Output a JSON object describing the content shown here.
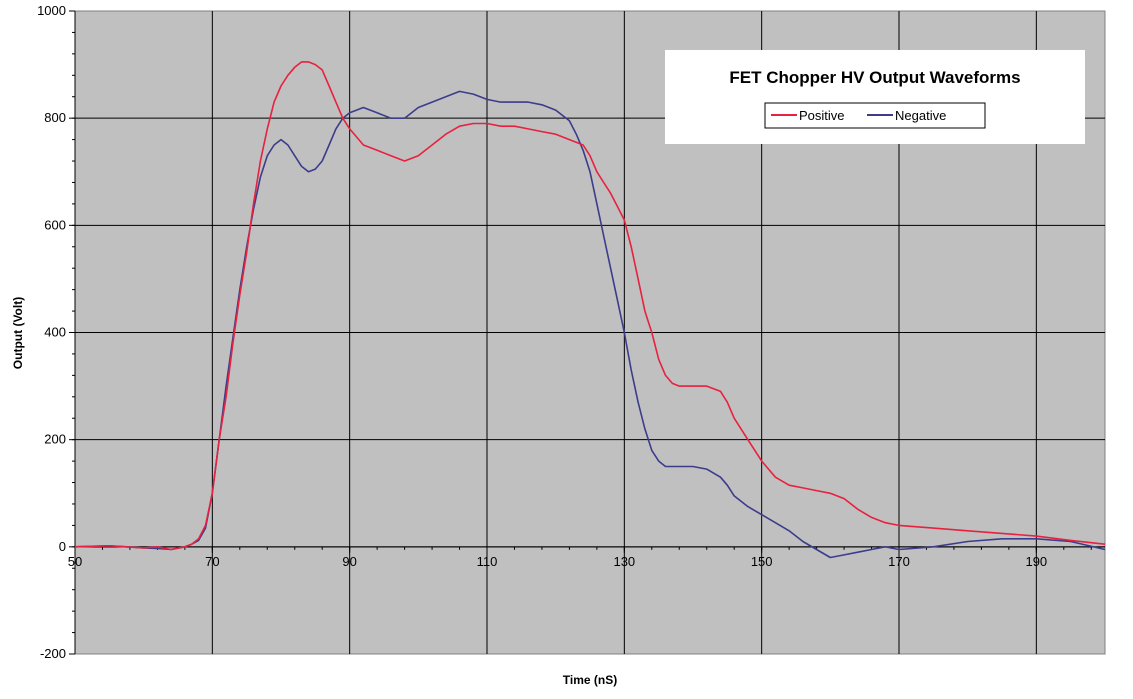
{
  "chart_data": {
    "type": "line",
    "title": "FET Chopper HV Output Waveforms",
    "xlabel": "Time (nS)",
    "ylabel": "Output (Volt)",
    "xlim": [
      50,
      200
    ],
    "ylim": [
      -200,
      1000
    ],
    "x_ticks": [
      50,
      70,
      90,
      110,
      130,
      150,
      170,
      190
    ],
    "y_ticks": [
      -200,
      0,
      200,
      400,
      600,
      800,
      1000
    ],
    "x_tick_labels": [
      "50",
      "70",
      "90",
      "110",
      "130",
      "150",
      "170",
      "190"
    ],
    "y_tick_labels": [
      "-200",
      "0",
      "200",
      "400",
      "600",
      "800",
      "1000"
    ],
    "grid": true,
    "legend_position": "top-right",
    "plot_background": "#c0c0c0",
    "series": [
      {
        "name": "Positive",
        "color": "#e8213f",
        "x": [
          50,
          55,
          60,
          62,
          64,
          66,
          67,
          68,
          69,
          70,
          71,
          72,
          73,
          74,
          75,
          76,
          77,
          78,
          79,
          80,
          81,
          82,
          83,
          84,
          85,
          86,
          87,
          88,
          89,
          90,
          92,
          94,
          96,
          98,
          100,
          102,
          104,
          106,
          108,
          110,
          112,
          114,
          116,
          118,
          120,
          122,
          124,
          125,
          126,
          127,
          128,
          129,
          130,
          131,
          132,
          133,
          134,
          135,
          136,
          137,
          138,
          140,
          142,
          144,
          145,
          146,
          148,
          150,
          152,
          154,
          156,
          158,
          160,
          162,
          164,
          166,
          168,
          170,
          175,
          180,
          185,
          190,
          195,
          200
        ],
        "y": [
          0,
          2,
          -2,
          0,
          -5,
          0,
          5,
          15,
          40,
          100,
          200,
          280,
          380,
          470,
          550,
          640,
          720,
          780,
          830,
          860,
          880,
          895,
          905,
          905,
          900,
          890,
          860,
          830,
          800,
          780,
          750,
          740,
          730,
          720,
          730,
          750,
          770,
          785,
          790,
          790,
          785,
          785,
          780,
          775,
          770,
          760,
          750,
          730,
          700,
          680,
          660,
          635,
          610,
          560,
          500,
          440,
          400,
          350,
          320,
          305,
          300,
          300,
          300,
          290,
          270,
          240,
          200,
          160,
          130,
          115,
          110,
          105,
          100,
          90,
          70,
          55,
          45,
          40,
          35,
          30,
          25,
          20,
          12,
          5
        ]
      },
      {
        "name": "Negative",
        "color": "#3c3c8c",
        "x": [
          50,
          55,
          60,
          62,
          64,
          66,
          67,
          68,
          69,
          70,
          71,
          72,
          73,
          74,
          75,
          76,
          77,
          78,
          79,
          80,
          81,
          82,
          83,
          84,
          85,
          86,
          87,
          88,
          89,
          90,
          92,
          94,
          96,
          98,
          100,
          102,
          104,
          106,
          108,
          110,
          112,
          114,
          116,
          118,
          120,
          122,
          123,
          124,
          125,
          126,
          127,
          128,
          129,
          130,
          131,
          132,
          133,
          134,
          135,
          136,
          137,
          138,
          140,
          142,
          144,
          145,
          146,
          148,
          150,
          152,
          154,
          156,
          158,
          160,
          162,
          164,
          166,
          168,
          170,
          175,
          180,
          185,
          190,
          195,
          200
        ],
        "y": [
          0,
          2,
          -2,
          -3,
          -5,
          0,
          5,
          12,
          35,
          100,
          200,
          300,
          390,
          480,
          560,
          630,
          690,
          730,
          750,
          760,
          750,
          730,
          710,
          700,
          705,
          720,
          750,
          780,
          800,
          810,
          820,
          810,
          800,
          800,
          820,
          830,
          840,
          850,
          845,
          835,
          830,
          830,
          830,
          825,
          815,
          795,
          770,
          740,
          700,
          640,
          580,
          520,
          460,
          400,
          330,
          270,
          220,
          180,
          160,
          150,
          150,
          150,
          150,
          145,
          130,
          115,
          95,
          75,
          60,
          45,
          30,
          10,
          -5,
          -20,
          -15,
          -10,
          -5,
          0,
          -5,
          0,
          10,
          15,
          15,
          10,
          -5
        ]
      }
    ]
  }
}
